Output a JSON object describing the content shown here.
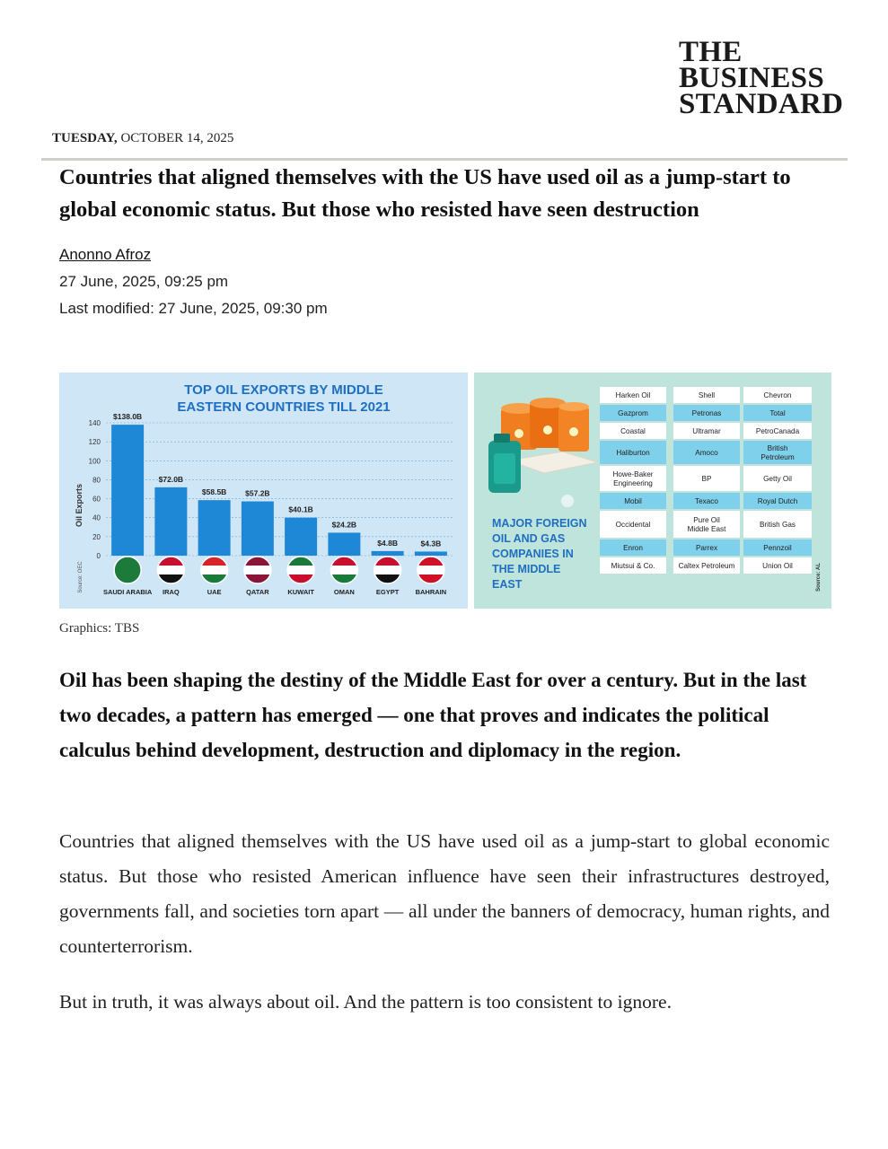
{
  "masthead": {
    "logo_line1": "THE",
    "logo_line2": "BUSINESS",
    "logo_line3": "STANDARD"
  },
  "dateline": {
    "weekday": "TUESDAY,",
    "date": "OCTOBER 14, 2025"
  },
  "article": {
    "headline": "Countries that aligned themselves with the US have used oil as a jump-start to global economic status. But those who resisted have seen destruction",
    "author": "Anonno Afroz",
    "published": "27 June, 2025, 09:25 pm",
    "modified": "Last modified: 27 June, 2025, 09:30 pm",
    "caption": "Graphics: TBS",
    "lead": "Oil has been shaping the destiny of the Middle East for over a century. But in the last two decades, a pattern has emerged — one that proves and indicates the political calculus behind development, destruction and diplomacy in the region.",
    "para1": "Countries that aligned themselves with the US have used oil as a jump-start to global economic status. But those who resisted American influence have seen their infrastructures destroyed, governments fall, and societies torn apart — all under the banners of democracy, human rights, and counterterrorism.",
    "para2": "But in truth, it was always about oil. And the pattern is too consistent to ignore."
  },
  "chart_data": {
    "type": "bar",
    "title": "TOP OIL EXPORTS BY MIDDLE EASTERN COUNTRIES TILL 2021",
    "title_line1": "TOP OIL EXPORTS BY MIDDLE",
    "title_line2": "EASTERN COUNTRIES TILL 2021",
    "ylabel": "Oil Exports",
    "source": "Source: OEC",
    "ylim": [
      0,
      140
    ],
    "yticks": [
      "0",
      "20",
      "40",
      "60",
      "80",
      "100",
      "120",
      "140"
    ],
    "categories": [
      "SAUDI ARABIA",
      "IRAQ",
      "UAE",
      "QATAR",
      "KUWAIT",
      "OMAN",
      "EGYPT",
      "BAHRAIN"
    ],
    "values": [
      138.0,
      72.0,
      58.5,
      57.2,
      40.1,
      24.2,
      4.8,
      4.3
    ],
    "value_labels": [
      "$138.0B",
      "$72.0B",
      "$58.5B",
      "$57.2B",
      "$40.1B",
      "$24.2B",
      "$4.8B",
      "$4.3B"
    ],
    "bar_color": "#1e88d6",
    "grid": true
  },
  "companies": {
    "title_lines": [
      "MAJOR FOREIGN",
      "OIL AND GAS",
      "COMPANIES IN",
      "THE MIDDLE",
      "EAST"
    ],
    "source": "Source: AL",
    "rows": [
      [
        "Harken Oil",
        "Shell",
        "Chevron"
      ],
      [
        "Gazprom",
        "Petronas",
        "Total"
      ],
      [
        "Coastal",
        "Ultramar",
        "PetroCanada"
      ],
      [
        "Haliburton",
        "Amoco",
        "British Petroleum"
      ],
      [
        "Howe-Baker Engineering",
        "BP",
        "Getty Oil"
      ],
      [
        "Mobil",
        "Texaco",
        "Royal Dutch"
      ],
      [
        "Occidental",
        "Pure Oil Middle East",
        "British Gas"
      ],
      [
        "Enron",
        "Parrex",
        "Pennzoil"
      ],
      [
        "Miutsui & Co.",
        "Caltex Petroleum",
        "Union Oil"
      ]
    ]
  },
  "colors": {
    "chart_bg": "#cfe6f7",
    "companies_bg": "#bfe4dc",
    "accent_blue": "#1e88d6",
    "highlight_row": "#7fd0ea"
  }
}
